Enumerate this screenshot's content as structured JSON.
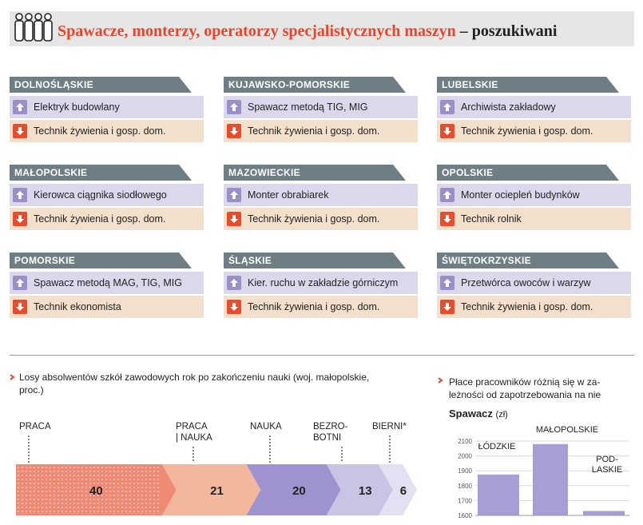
{
  "header": {
    "title_main": "Spawacze, monterzy, operatorzy specjalistycznych maszyn",
    "title_sep": " – ",
    "title_end": "poszukiwani"
  },
  "colors": {
    "accent": "#e8452b",
    "up": "#9b8fc8",
    "up_bg": "#dcd8ec",
    "down": "#ea4b2a",
    "down_bg": "#f2dfcc",
    "band": "#6e7e84"
  },
  "regions": [
    {
      "name": "DOLNOŚLĄSKIE",
      "up": "Elektryk budowlany",
      "down": "Technik żywienia i gosp. dom."
    },
    {
      "name": "KUJAWSKO-POMORSKIE",
      "up": "Spawacz metodą TIG, MIG",
      "down": "Technik żywienia i gosp. dom."
    },
    {
      "name": "LUBELSKIE",
      "up": "Archiwista zakładowy",
      "down": "Technik żywienia i gosp. dom."
    },
    {
      "name": "MAŁOPOLSKIE",
      "up": "Kierowca ciągnika siodłowego",
      "down": "Technik żywienia i gosp. dom."
    },
    {
      "name": "MAZOWIECKIE",
      "up": "Monter obrabiarek",
      "down": "Technik żywienia i gosp. dom."
    },
    {
      "name": "OPOLSKIE",
      "up": "Monter ociepleń budynków",
      "down": "Technik rolnik"
    },
    {
      "name": "POMORSKIE",
      "up": "Spawacz metodą MAG, TIG, MIG",
      "down": "Technik ekonomista"
    },
    {
      "name": "ŚLĄSKIE",
      "up": "Kier. ruchu w zakładzie górniczym",
      "down": "Technik żywienia i gosp. dom."
    },
    {
      "name": "ŚWIĘTOKRZYSKIE",
      "up": "Przetwórca owoców i warzyw",
      "down": "Technik żywienia i gosp. dom."
    }
  ],
  "chart_data": [
    {
      "type": "bar",
      "orientation": "horizontal-stacked",
      "title": "Losy absolwentów szkół zawodowych rok po zakończeniu nauki (woj. małopolskie, proc.)",
      "categories": [
        "PRACA",
        "PRACA | NAUKA",
        "NAUKA",
        "BEZRO-BOTNI",
        "BIERNI*"
      ],
      "label_lines": [
        [
          "PRACA"
        ],
        [
          "PRACA",
          "| NAUKA"
        ],
        [
          "NAUKA"
        ],
        [
          "BEZRO-",
          "BOTNI"
        ],
        [
          "BIERNI*"
        ]
      ],
      "values": [
        40,
        21,
        20,
        13,
        6
      ],
      "segment_colors": [
        "#ef8a74",
        "#f3b79e",
        "#9f93cf",
        "#c9c3e4",
        "#e3e0f1"
      ]
    },
    {
      "type": "bar",
      "title": "Płace pracowników różnią się w zależności od zapotrzebowania na nie",
      "title_lines": [
        "Płace pracowników różnią się w za-",
        "leżności od zapotrzebowania na nie"
      ],
      "subtitle": "Spawacz",
      "unit": "(zł)",
      "categories": [
        "ŁÓDZKIE",
        "MAŁOPOLSKIE",
        "PODLASKIE"
      ],
      "label_lines": [
        [
          "ŁÓDZKIE"
        ],
        [
          "MAŁOPOLSKIE"
        ],
        [
          "POD-",
          "LASKIE"
        ]
      ],
      "values": [
        1875,
        2080,
        1630
      ],
      "yticks": [
        2100,
        2000,
        1900,
        1800,
        1700,
        1600
      ],
      "ylim": [
        1600,
        2100
      ],
      "bar_color": "#a89ed6"
    }
  ]
}
